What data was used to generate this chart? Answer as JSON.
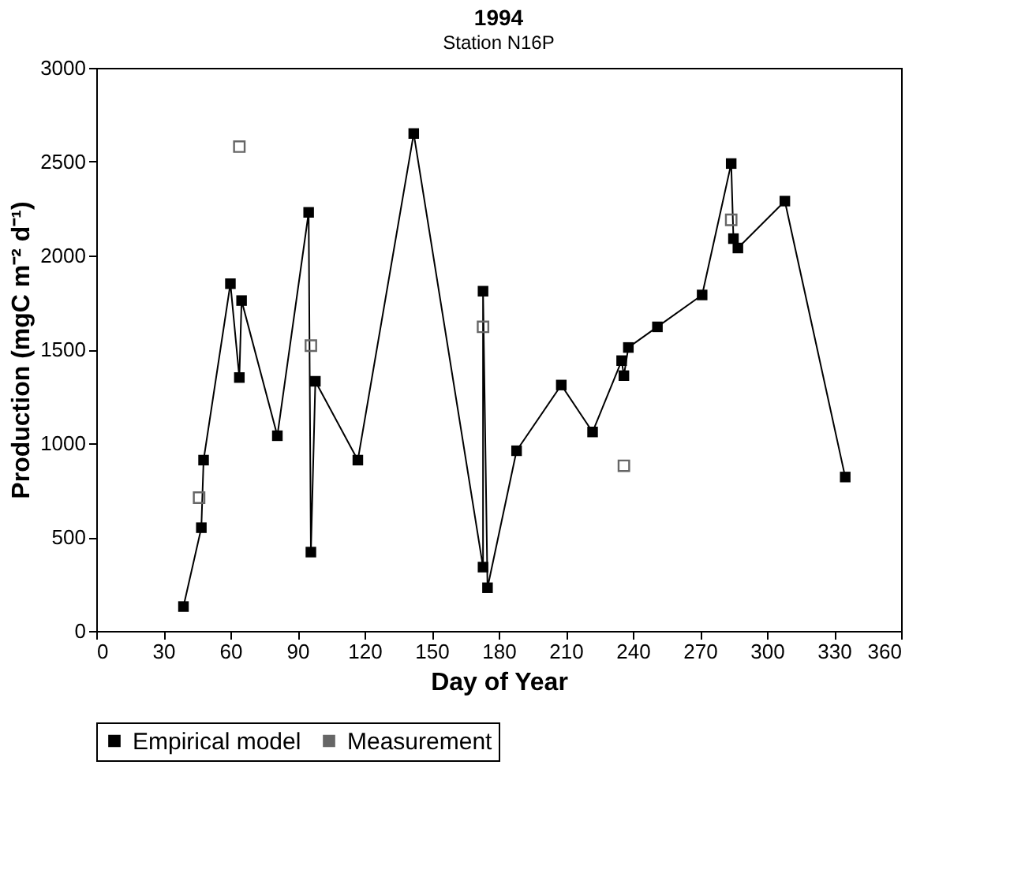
{
  "chart_data": {
    "type": "line",
    "title": "1994",
    "subtitle": "Station N16P",
    "xlabel": "Day of Year",
    "ylabel": "Production (mgC m⁻² d⁻¹)",
    "xlim": [
      0,
      360
    ],
    "xticks": [
      0,
      30,
      60,
      90,
      120,
      150,
      180,
      210,
      240,
      270,
      300,
      330,
      360
    ],
    "ylim": [
      0,
      3000
    ],
    "yticks": [
      0,
      500,
      1000,
      1500,
      2000,
      2500,
      3000
    ],
    "grid": false,
    "legend": "bottom",
    "series": [
      {
        "name": "Empirical model",
        "marker": "square",
        "color": "#000000",
        "x": [
          39,
          47,
          48,
          60,
          64,
          65,
          81,
          95,
          96,
          98,
          117,
          142,
          173,
          173,
          175,
          188,
          208,
          222,
          235,
          236,
          238,
          251,
          271,
          284,
          285,
          287,
          308,
          335
        ],
        "values": [
          130,
          550,
          910,
          1850,
          1350,
          1760,
          1040,
          2230,
          420,
          1330,
          910,
          2650,
          340,
          1810,
          230,
          960,
          1310,
          1060,
          1440,
          1360,
          1510,
          1620,
          1790,
          2490,
          2090,
          2040,
          2290,
          820
        ]
      },
      {
        "name": "Measurement",
        "type": "scatter",
        "marker": "square",
        "color": "#666666",
        "x": [
          46,
          64,
          96,
          173,
          236,
          284
        ],
        "values": [
          710,
          2580,
          1520,
          1620,
          880,
          2190
        ]
      }
    ]
  }
}
